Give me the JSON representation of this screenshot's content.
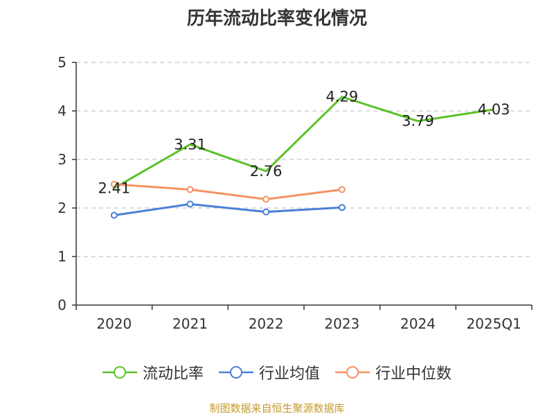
{
  "chart_data": {
    "type": "line",
    "title": "历年流动比率变化情况",
    "categories": [
      "2020",
      "2021",
      "2022",
      "2023",
      "2024",
      "2025Q1"
    ],
    "ylim": [
      0,
      5
    ],
    "yticks": [
      "0",
      "1",
      "2",
      "3",
      "4",
      "5"
    ],
    "grid": "horizontal dashed",
    "legend_position": "bottom",
    "series": [
      {
        "name": "流动比率",
        "color": "#5ac228",
        "values": [
          2.41,
          3.31,
          2.76,
          4.29,
          3.79,
          4.03
        ],
        "labels": [
          "2.41",
          "3.31",
          "2.76",
          "4.29",
          "3.79",
          "4.03"
        ]
      },
      {
        "name": "行业均值",
        "color": "#4a7fd9",
        "values": [
          1.85,
          2.08,
          1.92,
          2.01,
          null,
          null
        ]
      },
      {
        "name": "行业中位数",
        "color": "#f59262",
        "values": [
          2.49,
          2.38,
          2.18,
          2.38,
          null,
          null
        ]
      }
    ]
  },
  "source_note": "制图数据来自恒生聚源数据库"
}
